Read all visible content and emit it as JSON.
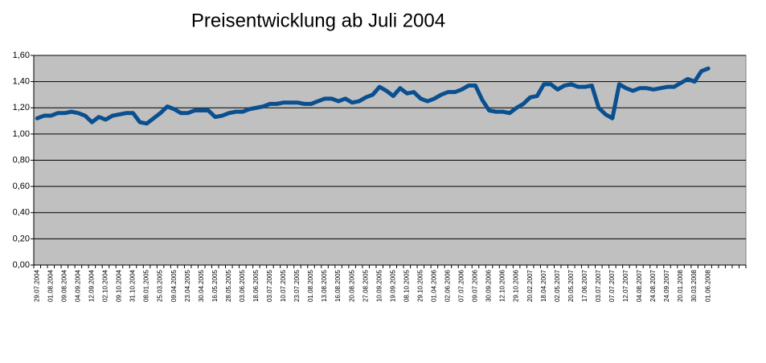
{
  "chart_data": {
    "type": "line",
    "title": "Preisentwicklung ab Juli 2004",
    "categories": [
      "29.07.2004",
      null,
      "01.08.2004",
      null,
      "09.08.2004",
      null,
      "04.09.2004",
      null,
      "12.09.2004",
      null,
      "02.10.2004",
      null,
      "09.10.2004",
      null,
      "31.10.2004",
      null,
      "08.01.2005",
      null,
      "25.03.2005",
      null,
      "09.04.2005",
      null,
      "23.04.2005",
      null,
      "30.04.2005",
      null,
      "16.05.2005",
      null,
      "28.05.2005",
      null,
      "03.06.2005",
      null,
      "18.06.2005",
      null,
      "03.07.2005",
      null,
      "10.07.2005",
      null,
      "23.07.2005",
      null,
      "01.08.2005",
      null,
      "13.08.2005",
      null,
      "16.08.2005",
      null,
      "20.08.2005",
      null,
      "27.08.2005",
      null,
      "10.09.2005",
      null,
      "19.09.2005",
      null,
      "08.10.2005",
      null,
      "29.10.2005",
      null,
      "01.04.2006",
      null,
      "02.06.2006",
      null,
      "07.07.2006",
      null,
      "09.07.2006",
      null,
      "30.09.2006",
      null,
      "12.10.2006",
      null,
      "29.10.2006",
      null,
      "20.02.2007",
      null,
      "18.04.2007",
      null,
      "02.05.2007",
      null,
      "20.05.2007",
      null,
      "17.06.2007",
      null,
      "03.07.2007",
      null,
      "07.07.2007",
      null,
      "12.07.2007",
      null,
      "04.08.2007",
      null,
      "24.08.2007",
      null,
      "24.09.2007",
      null,
      "20.01.2008",
      null,
      "30.03.2008",
      null,
      "01.06.2008",
      null,
      null,
      null,
      null,
      null
    ],
    "series": [
      {
        "color": "#0a4f8f",
        "values": [
          1.12,
          1.14,
          1.14,
          1.16,
          1.16,
          1.17,
          1.16,
          1.14,
          1.09,
          1.13,
          1.11,
          1.14,
          1.15,
          1.16,
          1.16,
          1.09,
          1.08,
          1.12,
          1.16,
          1.21,
          1.19,
          1.16,
          1.16,
          1.18,
          1.18,
          1.18,
          1.13,
          1.14,
          1.16,
          1.17,
          1.17,
          1.19,
          1.2,
          1.21,
          1.23,
          1.23,
          1.24,
          1.24,
          1.24,
          1.23,
          1.23,
          1.25,
          1.27,
          1.27,
          1.25,
          1.27,
          1.24,
          1.25,
          1.28,
          1.3,
          1.36,
          1.33,
          1.29,
          1.35,
          1.31,
          1.32,
          1.27,
          1.25,
          1.27,
          1.3,
          1.32,
          1.32,
          1.34,
          1.37,
          1.37,
          1.26,
          1.18,
          1.17,
          1.17,
          1.16,
          1.2,
          1.23,
          1.28,
          1.29,
          1.38,
          1.38,
          1.34,
          1.37,
          1.38,
          1.36,
          1.36,
          1.37,
          1.2,
          1.15,
          1.12,
          1.38,
          1.35,
          1.33,
          1.35,
          1.35,
          1.34,
          1.35,
          1.36,
          1.36,
          1.39,
          1.42,
          1.4,
          1.48,
          1.5,
          null,
          null,
          null,
          null,
          null
        ]
      }
    ],
    "ylim": [
      0,
      1.6
    ],
    "yticks": [
      {
        "value": 0,
        "label": "0,00"
      },
      {
        "value": 0.2,
        "label": "0,20"
      },
      {
        "value": 0.4,
        "label": "0,40"
      },
      {
        "value": 0.6,
        "label": "0,60"
      },
      {
        "value": 0.8,
        "label": "0,80"
      },
      {
        "value": 1,
        "label": "1,00"
      },
      {
        "value": 1.2,
        "label": "1,20"
      },
      {
        "value": 1.4,
        "label": "1,40"
      },
      {
        "value": 1.6,
        "label": "1,60"
      }
    ],
    "grid": true
  }
}
